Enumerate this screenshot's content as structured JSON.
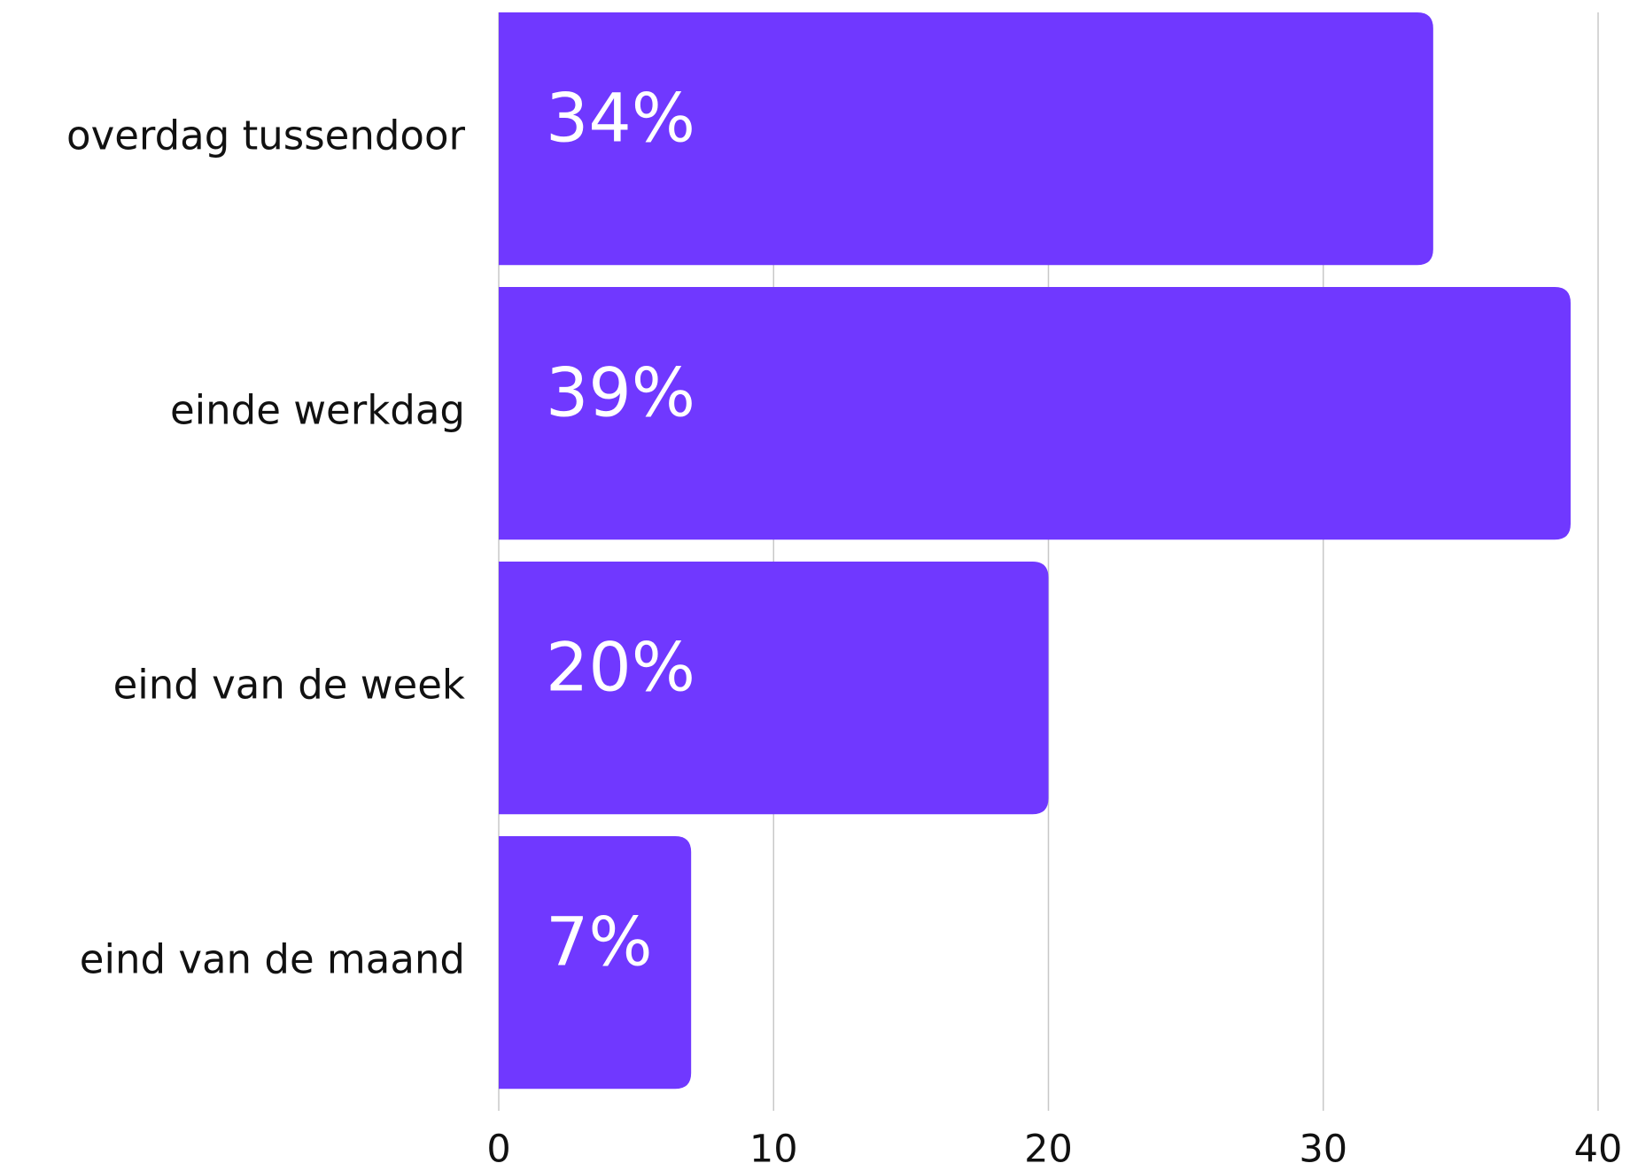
{
  "chart_data": {
    "type": "barh",
    "categories": [
      "overdag tussendoor",
      "einde werkdag",
      "eind van de week",
      "eind van de maand"
    ],
    "values": [
      34,
      39,
      20,
      7
    ],
    "value_labels": [
      "34%",
      "39%",
      "20%",
      "7%"
    ],
    "color": "#7038ff",
    "xlim": [
      0,
      40
    ],
    "xticks": [
      0,
      10,
      20,
      30,
      40
    ],
    "grid": true
  }
}
